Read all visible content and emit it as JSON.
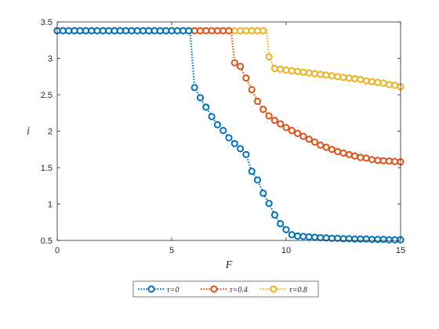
{
  "chart_data": {
    "type": "line",
    "xlabel": "F",
    "ylabel": "i",
    "xlim": [
      0,
      15
    ],
    "ylim": [
      0.5,
      3.5
    ],
    "xticks": [
      0,
      5,
      10,
      15
    ],
    "yticks": [
      0.5,
      1,
      1.5,
      2,
      2.5,
      3,
      3.5
    ],
    "xtick_labels": [
      "0",
      "5",
      "10",
      "15"
    ],
    "ytick_labels": [
      "0.5",
      "1",
      "1.5",
      "2",
      "2.5",
      "3",
      "3.5"
    ],
    "grid": false,
    "legend_position": "bottom-outside",
    "series": [
      {
        "name": "τ=0",
        "color": "#0072BD",
        "x": [
          0,
          0.25,
          0.5,
          0.75,
          1,
          1.25,
          1.5,
          1.75,
          2,
          2.25,
          2.5,
          2.75,
          3,
          3.25,
          3.5,
          3.75,
          4,
          4.25,
          4.5,
          4.75,
          5,
          5.25,
          5.5,
          5.75,
          5.8,
          6,
          6.25,
          6.5,
          6.75,
          7,
          7.25,
          7.5,
          7.75,
          8,
          8.25,
          8.5,
          8.75,
          9,
          9.25,
          9.5,
          9.75,
          10,
          10.25,
          10.5,
          10.75,
          11,
          11.25,
          11.5,
          11.75,
          12,
          12.25,
          12.5,
          12.75,
          13,
          13.25,
          13.5,
          13.75,
          14,
          14.25,
          14.5,
          14.75,
          15
        ],
        "y": [
          3.38,
          3.38,
          3.38,
          3.38,
          3.38,
          3.38,
          3.38,
          3.38,
          3.38,
          3.38,
          3.38,
          3.38,
          3.38,
          3.38,
          3.38,
          3.38,
          3.38,
          3.38,
          3.38,
          3.38,
          3.38,
          3.38,
          3.38,
          3.38,
          3.38,
          2.6,
          2.46,
          2.33,
          2.2,
          2.09,
          2.01,
          1.91,
          1.83,
          1.76,
          1.68,
          1.45,
          1.33,
          1.15,
          1.01,
          0.85,
          0.73,
          0.65,
          0.58,
          0.56,
          0.555,
          0.55,
          0.545,
          0.54,
          0.535,
          0.53,
          0.53,
          0.525,
          0.525,
          0.52,
          0.52,
          0.52,
          0.515,
          0.515,
          0.515,
          0.51,
          0.51,
          0.51
        ],
        "markers": [
          0,
          0.25,
          0.5,
          0.75,
          1,
          1.25,
          1.5,
          1.75,
          2,
          2.25,
          2.5,
          2.75,
          3,
          3.25,
          3.5,
          3.75,
          4,
          4.25,
          4.5,
          4.75,
          5,
          5.25,
          5.5,
          5.75,
          6,
          6.25,
          6.5,
          6.75,
          7,
          7.25,
          7.5,
          7.75,
          8,
          8.25,
          8.5,
          8.75,
          9,
          9.25,
          9.5,
          9.75,
          10,
          10.25,
          10.5,
          10.75,
          11,
          11.25,
          11.5,
          11.75,
          12,
          12.25,
          12.5,
          12.75,
          13,
          13.25,
          13.5,
          13.75,
          14,
          14.25,
          14.5,
          14.75,
          15
        ]
      },
      {
        "name": "τ=0.4",
        "color": "#D95319",
        "x": [
          0,
          0.25,
          0.5,
          0.75,
          1,
          1.25,
          1.5,
          1.75,
          2,
          2.25,
          2.5,
          2.75,
          3,
          3.25,
          3.5,
          3.75,
          4,
          4.25,
          4.5,
          4.75,
          5,
          5.25,
          5.5,
          5.75,
          6,
          6.25,
          6.5,
          6.75,
          7,
          7.25,
          7.5,
          7.6,
          7.75,
          8,
          8.25,
          8.5,
          8.75,
          9,
          9.25,
          9.5,
          9.75,
          10,
          10.25,
          10.5,
          10.75,
          11,
          11.25,
          11.5,
          11.75,
          12,
          12.25,
          12.5,
          12.75,
          13,
          13.25,
          13.5,
          13.75,
          14,
          14.25,
          14.5,
          14.75,
          15
        ],
        "y": [
          3.38,
          3.38,
          3.38,
          3.38,
          3.38,
          3.38,
          3.38,
          3.38,
          3.38,
          3.38,
          3.38,
          3.38,
          3.38,
          3.38,
          3.38,
          3.38,
          3.38,
          3.38,
          3.38,
          3.38,
          3.38,
          3.38,
          3.38,
          3.38,
          3.38,
          3.38,
          3.38,
          3.38,
          3.38,
          3.38,
          3.38,
          3.38,
          2.94,
          2.89,
          2.73,
          2.57,
          2.41,
          2.3,
          2.21,
          2.15,
          2.1,
          2.05,
          2.01,
          1.97,
          1.93,
          1.89,
          1.85,
          1.81,
          1.78,
          1.75,
          1.72,
          1.7,
          1.68,
          1.66,
          1.64,
          1.63,
          1.61,
          1.6,
          1.595,
          1.59,
          1.585,
          1.58
        ],
        "markers": [
          0,
          0.25,
          0.5,
          0.75,
          1,
          1.25,
          1.5,
          1.75,
          2,
          2.25,
          2.5,
          2.75,
          3,
          3.25,
          3.5,
          3.75,
          4,
          4.25,
          4.5,
          4.75,
          5,
          5.25,
          5.5,
          5.75,
          6,
          6.25,
          6.5,
          6.75,
          7,
          7.25,
          7.5,
          7.75,
          8,
          8.25,
          8.5,
          8.75,
          9,
          9.25,
          9.5,
          9.75,
          10,
          10.25,
          10.5,
          10.75,
          11,
          11.25,
          11.5,
          11.75,
          12,
          12.25,
          12.5,
          12.75,
          13,
          13.25,
          13.5,
          13.75,
          14,
          14.25,
          14.5,
          14.75,
          15
        ]
      },
      {
        "name": "τ=0.8",
        "color": "#EDB120",
        "x": [
          0,
          0.25,
          0.5,
          0.75,
          1,
          1.25,
          1.5,
          1.75,
          2,
          2.25,
          2.5,
          2.75,
          3,
          3.25,
          3.5,
          3.75,
          4,
          4.25,
          4.5,
          4.75,
          5,
          5.25,
          5.5,
          5.75,
          6,
          6.25,
          6.5,
          6.75,
          7,
          7.25,
          7.5,
          7.75,
          8,
          8.25,
          8.5,
          8.75,
          9,
          9.15,
          9.25,
          9.5,
          9.75,
          10,
          10.25,
          10.5,
          10.75,
          11,
          11.25,
          11.5,
          11.75,
          12,
          12.25,
          12.5,
          12.75,
          13,
          13.25,
          13.5,
          13.75,
          14,
          14.25,
          14.5,
          14.75,
          15
        ],
        "y": [
          3.38,
          3.38,
          3.38,
          3.38,
          3.38,
          3.38,
          3.38,
          3.38,
          3.38,
          3.38,
          3.38,
          3.38,
          3.38,
          3.38,
          3.38,
          3.38,
          3.38,
          3.38,
          3.38,
          3.38,
          3.38,
          3.38,
          3.38,
          3.38,
          3.38,
          3.38,
          3.38,
          3.38,
          3.38,
          3.38,
          3.38,
          3.38,
          3.38,
          3.38,
          3.38,
          3.38,
          3.38,
          3.38,
          3.02,
          2.86,
          2.85,
          2.84,
          2.83,
          2.82,
          2.81,
          2.8,
          2.79,
          2.78,
          2.77,
          2.76,
          2.75,
          2.74,
          2.73,
          2.72,
          2.71,
          2.69,
          2.68,
          2.67,
          2.66,
          2.64,
          2.63,
          2.61
        ],
        "markers": [
          0,
          0.25,
          0.5,
          0.75,
          1,
          1.25,
          1.5,
          1.75,
          2,
          2.25,
          2.5,
          2.75,
          3,
          3.25,
          3.5,
          3.75,
          4,
          4.25,
          4.5,
          4.75,
          5,
          5.25,
          5.5,
          5.75,
          6,
          6.25,
          6.5,
          6.75,
          7,
          7.25,
          7.5,
          7.75,
          8,
          8.25,
          8.5,
          8.75,
          9,
          9.25,
          9.5,
          9.75,
          10,
          10.25,
          10.5,
          10.75,
          11,
          11.25,
          11.5,
          11.75,
          12,
          12.25,
          12.5,
          12.75,
          13,
          13.25,
          13.5,
          13.75,
          14,
          14.25,
          14.5,
          14.75,
          15
        ]
      }
    ]
  }
}
